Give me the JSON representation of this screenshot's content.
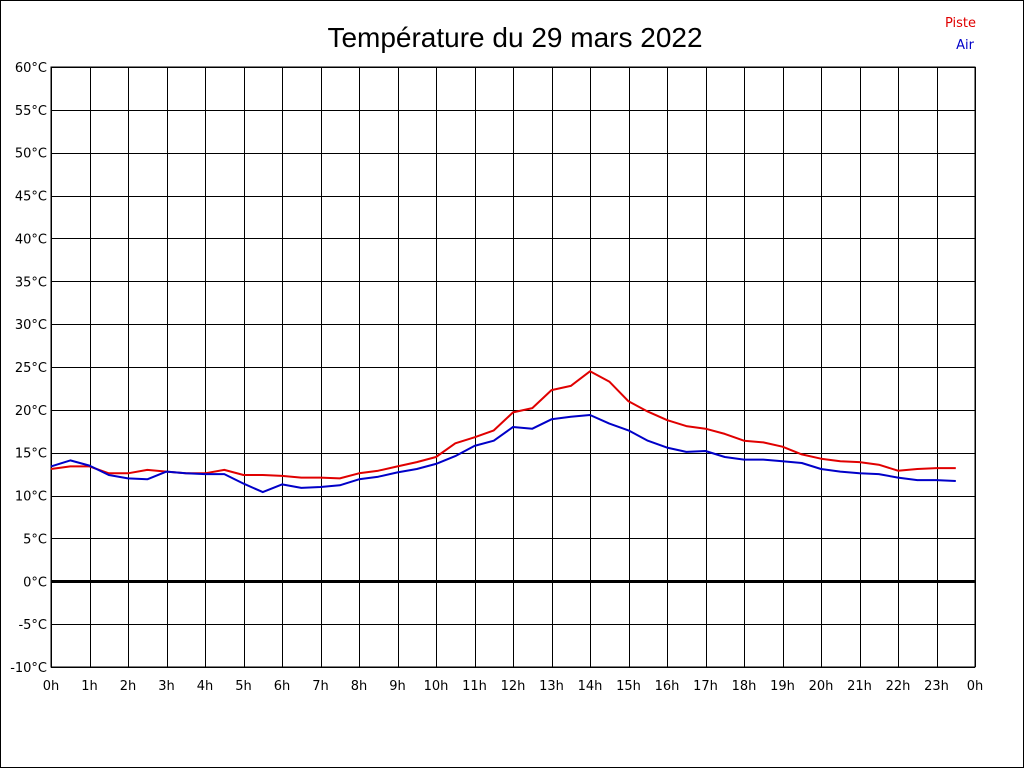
{
  "chart_data": {
    "type": "line",
    "title": "Température du 29 mars 2022",
    "xlabel": "",
    "ylabel": "",
    "x_tick_labels": [
      "0h",
      "1h",
      "2h",
      "3h",
      "4h",
      "5h",
      "6h",
      "7h",
      "8h",
      "9h",
      "10h",
      "11h",
      "12h",
      "13h",
      "14h",
      "15h",
      "16h",
      "17h",
      "18h",
      "19h",
      "20h",
      "21h",
      "22h",
      "23h",
      "0h"
    ],
    "y_tick_labels": [
      "60°C",
      "55°C",
      "50°C",
      "45°C",
      "40°C",
      "35°C",
      "30°C",
      "25°C",
      "20°C",
      "15°C",
      "10°C",
      "5°C",
      "0°C",
      "-5°C",
      "-10°C"
    ],
    "xlim": [
      0,
      24
    ],
    "ylim": [
      -10,
      60
    ],
    "y_step": 5,
    "grid": true,
    "zero_line": true,
    "legend": {
      "position": "top-right",
      "entries": [
        "Piste",
        "Air"
      ]
    },
    "series": [
      {
        "name": "Piste",
        "color": "#e00000",
        "x": [
          0,
          0.5,
          1,
          1.5,
          2,
          2.5,
          3,
          3.5,
          4,
          4.5,
          5,
          5.5,
          6,
          6.5,
          7,
          7.5,
          8,
          8.5,
          9,
          9.5,
          10,
          10.5,
          11,
          11.5,
          12,
          12.5,
          13,
          13.5,
          14,
          14.5,
          15,
          15.5,
          16,
          16.5,
          17,
          17.5,
          18,
          18.5,
          19,
          19.5,
          20,
          20.5,
          21,
          21.5,
          22,
          22.5,
          23,
          23.5
        ],
        "values": [
          13.1,
          13.4,
          13.4,
          12.6,
          12.6,
          13.0,
          12.8,
          12.6,
          12.6,
          13.0,
          12.4,
          12.4,
          12.3,
          12.1,
          12.1,
          12.0,
          12.6,
          12.9,
          13.4,
          13.9,
          14.5,
          16.1,
          16.8,
          17.6,
          19.7,
          20.2,
          22.3,
          22.8,
          24.5,
          23.3,
          21.0,
          19.8,
          18.8,
          18.1,
          17.8,
          17.2,
          16.4,
          16.2,
          15.7,
          14.8,
          14.3,
          14.0,
          13.9,
          13.6,
          12.9,
          13.1,
          13.2,
          13.2
        ]
      },
      {
        "name": "Air",
        "color": "#0000c8",
        "x": [
          0,
          0.5,
          1,
          1.5,
          2,
          2.5,
          3,
          3.5,
          4,
          4.5,
          5,
          5.5,
          6,
          6.5,
          7,
          7.5,
          8,
          8.5,
          9,
          9.5,
          10,
          10.5,
          11,
          11.5,
          12,
          12.5,
          13,
          13.5,
          14,
          14.5,
          15,
          15.5,
          16,
          16.5,
          17,
          17.5,
          18,
          18.5,
          19,
          19.5,
          20,
          20.5,
          21,
          21.5,
          22,
          22.5,
          23,
          23.5
        ],
        "values": [
          13.4,
          14.1,
          13.5,
          12.4,
          12.0,
          11.9,
          12.8,
          12.6,
          12.5,
          12.5,
          11.4,
          10.4,
          11.3,
          10.9,
          11.0,
          11.2,
          11.9,
          12.2,
          12.7,
          13.1,
          13.7,
          14.6,
          15.8,
          16.4,
          18.0,
          17.8,
          18.9,
          19.2,
          19.4,
          18.4,
          17.6,
          16.4,
          15.6,
          15.1,
          15.2,
          14.5,
          14.2,
          14.2,
          14.0,
          13.8,
          13.1,
          12.8,
          12.6,
          12.5,
          12.1,
          11.8,
          11.8,
          11.7
        ]
      }
    ]
  }
}
